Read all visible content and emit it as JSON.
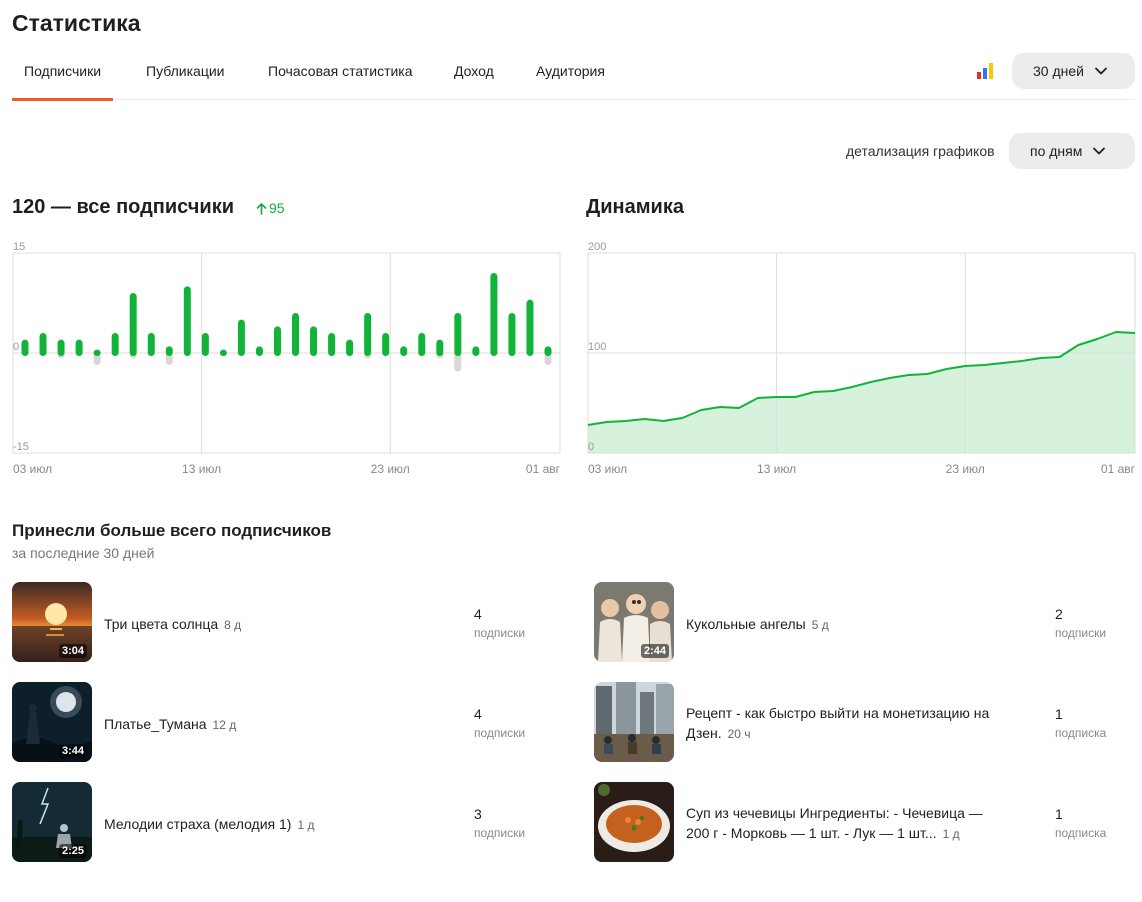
{
  "page": {
    "title": "Статистика"
  },
  "tabs": [
    {
      "label": "Подписчики",
      "active": true
    },
    {
      "label": "Публикации",
      "active": false
    },
    {
      "label": "Почасовая статистика",
      "active": false
    },
    {
      "label": "Доход",
      "active": false
    },
    {
      "label": "Аудитория",
      "active": false
    }
  ],
  "period": {
    "label": "30 дней"
  },
  "detail": {
    "label": "детализация графиков",
    "value": "по дням"
  },
  "subscribers": {
    "heading": "120 — все подписчики",
    "growth": "95"
  },
  "dynamics": {
    "heading": "Динамика"
  },
  "chart_data": [
    {
      "type": "bar",
      "ylim": [
        -15,
        15
      ],
      "yticks": [
        "15",
        "0",
        "-15"
      ],
      "xticks": [
        "03 июл",
        "13 июл",
        "23 июл",
        "01 авг"
      ],
      "colors": {
        "positive": "#11b339",
        "negative": "#d8d8d8"
      },
      "series": [
        {
          "values": [
            2,
            3,
            2,
            2,
            0.5,
            3,
            9,
            3,
            1,
            10,
            3,
            0.5,
            5,
            1,
            4,
            6,
            4,
            3,
            2,
            6,
            3,
            1,
            3,
            2,
            6,
            1,
            12,
            6,
            8,
            1
          ]
        },
        {
          "values": [
            0,
            0,
            -0.8,
            0,
            -1.8,
            0,
            -0.8,
            0,
            -1.8,
            0,
            0,
            0,
            0,
            0,
            0,
            0,
            0,
            0,
            0,
            -0.8,
            0,
            0,
            0,
            -0.8,
            -2.8,
            0,
            0,
            0,
            0,
            -1.8
          ]
        }
      ]
    },
    {
      "type": "area",
      "ylim": [
        0,
        200
      ],
      "yticks": [
        "200",
        "100",
        "0"
      ],
      "xticks": [
        "03 июл",
        "13 июл",
        "23 июл",
        "01 авг"
      ],
      "colors": {
        "line": "#11b339",
        "fill": "#d6f2dd"
      },
      "series": [
        {
          "values": [
            28,
            31,
            32,
            34,
            32,
            35,
            43,
            46,
            45,
            55,
            56,
            56,
            61,
            62,
            66,
            71,
            75,
            78,
            79,
            84,
            87,
            88,
            90,
            92,
            95,
            96,
            108,
            114,
            121,
            120
          ]
        }
      ]
    }
  ],
  "top": {
    "title": "Принесли больше всего подписчиков",
    "subtitle": "за последние 30 дней",
    "left": [
      {
        "title": "Три цвета солнца",
        "age": "8 д",
        "duration": "3:04",
        "count": "4",
        "count_label": "подписки",
        "thumb": "sunset"
      },
      {
        "title": "Платье_Тумана",
        "age": "12 д",
        "duration": "3:44",
        "count": "4",
        "count_label": "подписки",
        "thumb": "moon"
      },
      {
        "title": "Мелодии страха (мелодия 1)",
        "age": "1 д",
        "duration": "2:25",
        "count": "3",
        "count_label": "подписки",
        "thumb": "storm"
      }
    ],
    "right": [
      {
        "title": "Кукольные ангелы",
        "age": "5 д",
        "duration": "2:44",
        "count": "2",
        "count_label": "подписки",
        "thumb": "dolls"
      },
      {
        "title_line1": "Рецепт - как быстро выйти на монетизацию на",
        "title_line2": "Дзен.",
        "age": "20 ч",
        "count": "1",
        "count_label": "подписка",
        "thumb": "city"
      },
      {
        "title_line1": "Суп из чечевицы Ингредиенты: - Чечевица —",
        "title_line2": "200 г - Морковь — 1 шт. - Лук — 1 шт...",
        "age": "1 д",
        "count": "1",
        "count_label": "подписка",
        "thumb": "soup"
      }
    ]
  }
}
